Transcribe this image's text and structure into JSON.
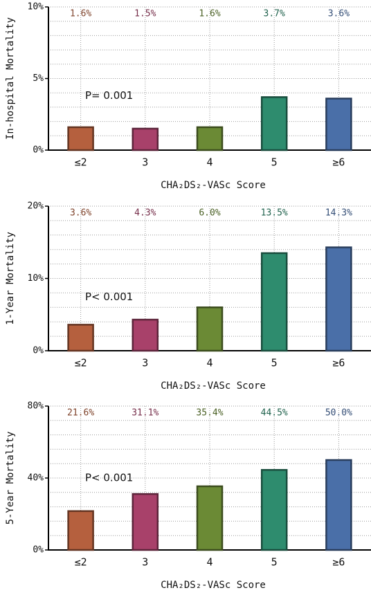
{
  "chart_data": [
    {
      "type": "bar",
      "y_label": "In-hospital Mortality",
      "x_label": "CHA₂DS₂-VASc Score",
      "annotation": "P= 0.001",
      "categories": [
        "≤2",
        "3",
        "4",
        "5",
        "≥6"
      ],
      "values": [
        1.6,
        1.5,
        1.6,
        3.7,
        3.6
      ],
      "value_labels": [
        "1.6%",
        "1.5%",
        "1.6%",
        "3.7%",
        "3.6%"
      ],
      "colors": [
        "#b5603e",
        "#a8416a",
        "#6b8a35",
        "#2e8c6e",
        "#4a6fa8"
      ],
      "ylim": [
        0,
        10
      ],
      "yticks": [
        {
          "value": 0,
          "label": "0%"
        },
        {
          "value": 5,
          "label": "5%"
        },
        {
          "value": 10,
          "label": "10%"
        }
      ],
      "minor_yticks": [
        1,
        2,
        3,
        4,
        6,
        7,
        8,
        9
      ],
      "grid": true
    },
    {
      "type": "bar",
      "y_label": "1-Year Mortality",
      "x_label": "CHA₂DS₂-VASc Score",
      "annotation": "P< 0.001",
      "categories": [
        "≤2",
        "3",
        "4",
        "5",
        "≥6"
      ],
      "values": [
        3.6,
        4.3,
        6.0,
        13.5,
        14.3
      ],
      "value_labels": [
        "3.6%",
        "4.3%",
        "6.0%",
        "13.5%",
        "14.3%"
      ],
      "colors": [
        "#b5603e",
        "#a8416a",
        "#6b8a35",
        "#2e8c6e",
        "#4a6fa8"
      ],
      "ylim": [
        0,
        20
      ],
      "yticks": [
        {
          "value": 0,
          "label": "0%"
        },
        {
          "value": 10,
          "label": "10%"
        },
        {
          "value": 20,
          "label": "20%"
        }
      ],
      "minor_yticks": [
        2,
        4,
        6,
        8,
        12,
        14,
        16,
        18
      ],
      "grid": true
    },
    {
      "type": "bar",
      "y_label": "5-Year Mortality",
      "x_label": "CHA₂DS₂-VASc Score",
      "annotation": "P< 0.001",
      "categories": [
        "≤2",
        "3",
        "4",
        "5",
        "≥6"
      ],
      "values": [
        21.6,
        31.1,
        35.4,
        44.5,
        50.0
      ],
      "value_labels": [
        "21.6%",
        "31.1%",
        "35.4%",
        "44.5%",
        "50.0%"
      ],
      "colors": [
        "#b5603e",
        "#a8416a",
        "#6b8a35",
        "#2e8c6e",
        "#4a6fa8"
      ],
      "ylim": [
        0,
        80
      ],
      "yticks": [
        {
          "value": 0,
          "label": "0%"
        },
        {
          "value": 40,
          "label": "40%"
        },
        {
          "value": 80,
          "label": "80%"
        }
      ],
      "minor_yticks": [
        8,
        16,
        24,
        32,
        48,
        56,
        64,
        72
      ],
      "grid": true
    }
  ]
}
